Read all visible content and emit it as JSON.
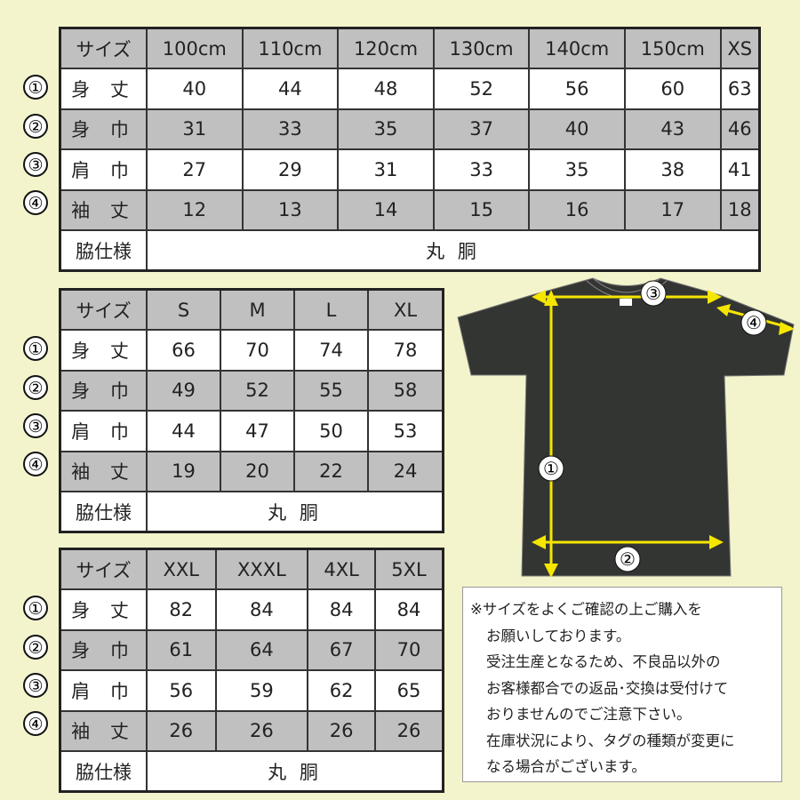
{
  "tables": [
    {
      "header": [
        "サイズ",
        "100cm",
        "110cm",
        "120cm",
        "130cm",
        "140cm",
        "150cm",
        "XS"
      ],
      "rows": [
        {
          "no": "①",
          "label": "身 丈",
          "values": [
            "40",
            "44",
            "48",
            "52",
            "56",
            "60",
            "63"
          ]
        },
        {
          "no": "②",
          "label": "身 巾",
          "values": [
            "31",
            "33",
            "35",
            "37",
            "40",
            "43",
            "46"
          ]
        },
        {
          "no": "③",
          "label": "肩 巾",
          "values": [
            "27",
            "29",
            "31",
            "33",
            "35",
            "38",
            "41"
          ]
        },
        {
          "no": "④",
          "label": "袖 丈",
          "values": [
            "12",
            "13",
            "14",
            "15",
            "16",
            "17",
            "18"
          ]
        }
      ],
      "side_label": "脇仕様",
      "side_value": "丸 胴"
    },
    {
      "header": [
        "サイズ",
        "S",
        "M",
        "L",
        "XL"
      ],
      "rows": [
        {
          "no": "①",
          "label": "身 丈",
          "values": [
            "66",
            "70",
            "74",
            "78"
          ]
        },
        {
          "no": "②",
          "label": "身 巾",
          "values": [
            "49",
            "52",
            "55",
            "58"
          ]
        },
        {
          "no": "③",
          "label": "肩 巾",
          "values": [
            "44",
            "47",
            "50",
            "53"
          ]
        },
        {
          "no": "④",
          "label": "袖 丈",
          "values": [
            "19",
            "20",
            "22",
            "24"
          ]
        }
      ],
      "side_label": "脇仕様",
      "side_value": "丸 胴"
    },
    {
      "header": [
        "サイズ",
        "XXL",
        "XXXL",
        "4XL",
        "5XL"
      ],
      "rows": [
        {
          "no": "①",
          "label": "身 丈",
          "values": [
            "82",
            "84",
            "84",
            "84"
          ]
        },
        {
          "no": "②",
          "label": "身 巾",
          "values": [
            "61",
            "64",
            "67",
            "70"
          ]
        },
        {
          "no": "③",
          "label": "肩 巾",
          "values": [
            "56",
            "59",
            "62",
            "65"
          ]
        },
        {
          "no": "④",
          "label": "袖 丈",
          "values": [
            "26",
            "26",
            "26",
            "26"
          ]
        }
      ],
      "side_label": "脇仕様",
      "side_value": "丸 胴"
    }
  ],
  "diagram": {
    "markers": [
      "①",
      "②",
      "③",
      "④"
    ],
    "shirt_color": "#333533",
    "arrow_color": "#f5e600"
  },
  "notes": [
    "※サイズをよくご確認の上ご購入を",
    "お願いしております。",
    "受注生産となるため、不良品以外の",
    "お客様都合での返品･交換は受付けて",
    "おりませんのでご注意下さい。",
    "在庫状況により、タグの種類が変更に",
    "なる場合がございます。"
  ]
}
